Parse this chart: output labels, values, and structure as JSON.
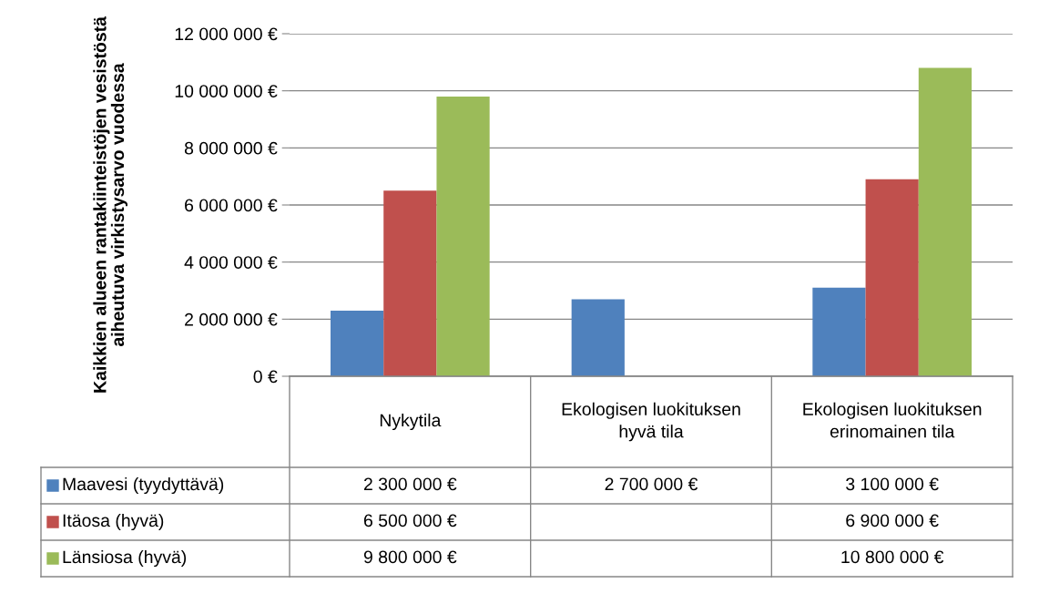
{
  "chart_data": {
    "type": "bar",
    "ylabel": "Kaikkien alueen rantakiinteistöjen vesistöstä aiheutuva virkistysarvo vuodessa",
    "categories": [
      "Nykytila",
      "Ekologisen luokituksen hyvä tila",
      "Ekologisen luokituksen erinomainen tila"
    ],
    "series": [
      {
        "name": "Maavesi (tyydyttävä)",
        "color": "#4f81bd",
        "values": [
          2300000,
          2700000,
          3100000
        ],
        "value_labels": [
          "2 300 000 €",
          "2 700 000 €",
          "3 100 000 €"
        ]
      },
      {
        "name": "Itäosa (hyvä)",
        "color": "#c0504d",
        "values": [
          6500000,
          null,
          6900000
        ],
        "value_labels": [
          "6 500 000 €",
          null,
          "6 900 000 €"
        ]
      },
      {
        "name": "Länsiosa (hyvä)",
        "color": "#9bbb59",
        "values": [
          9800000,
          null,
          10800000
        ],
        "value_labels": [
          "9 800 000 €",
          null,
          "10 800 000 €"
        ]
      }
    ],
    "ylim": [
      0,
      12000000
    ],
    "yticks": [
      {
        "value": 0,
        "label": "0 €"
      },
      {
        "value": 2000000,
        "label": "2 000 000 €"
      },
      {
        "value": 4000000,
        "label": "4 000 000 €"
      },
      {
        "value": 6000000,
        "label": "6 000 000 €"
      },
      {
        "value": 8000000,
        "label": "8 000 000 €"
      },
      {
        "value": 10000000,
        "label": "10 000 000 €"
      },
      {
        "value": 12000000,
        "label": "12 000 000 €"
      }
    ],
    "grid": "y",
    "legend": "bottom"
  }
}
